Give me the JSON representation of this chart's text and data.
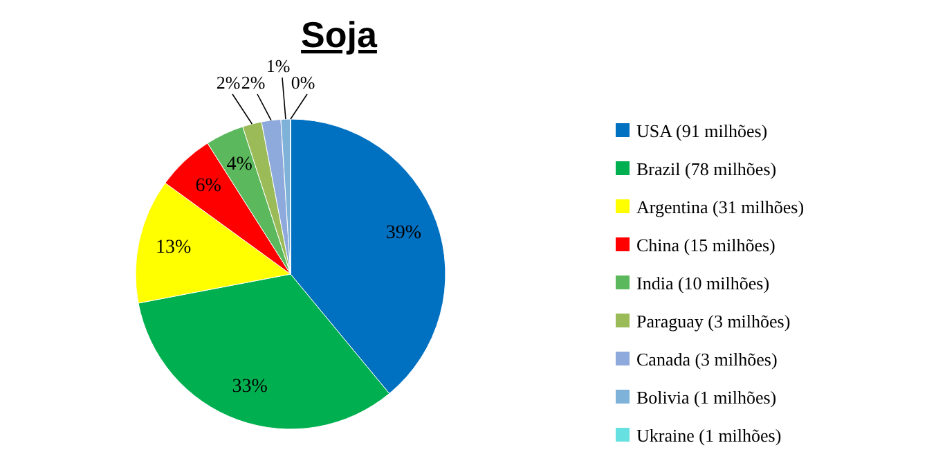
{
  "chart_data": {
    "type": "pie",
    "title": "Soja",
    "categories": [
      "USA (91 milhões)",
      "Brazil (78 milhões)",
      "Argentina (31 milhões)",
      "China (15 milhões)",
      "India (10 milhões)",
      "Paraguay (3 milhões)",
      "Canada (3 milhões)",
      "Bolivia (1 milhões)",
      "Ukraine (1 milhões)"
    ],
    "values": [
      39,
      33,
      13,
      6,
      4,
      2,
      2,
      1,
      0
    ],
    "colors": [
      "#0070c0",
      "#00b050",
      "#ffff00",
      "#ff0000",
      "#5cb85c",
      "#9bbb59",
      "#8ea9db",
      "#7fb2d9",
      "#66e0e0"
    ],
    "value_labels": [
      "39%",
      "33%",
      "13%",
      "6%",
      "4%",
      "2%",
      "2%",
      "1%",
      "0%"
    ],
    "legend": "right"
  }
}
